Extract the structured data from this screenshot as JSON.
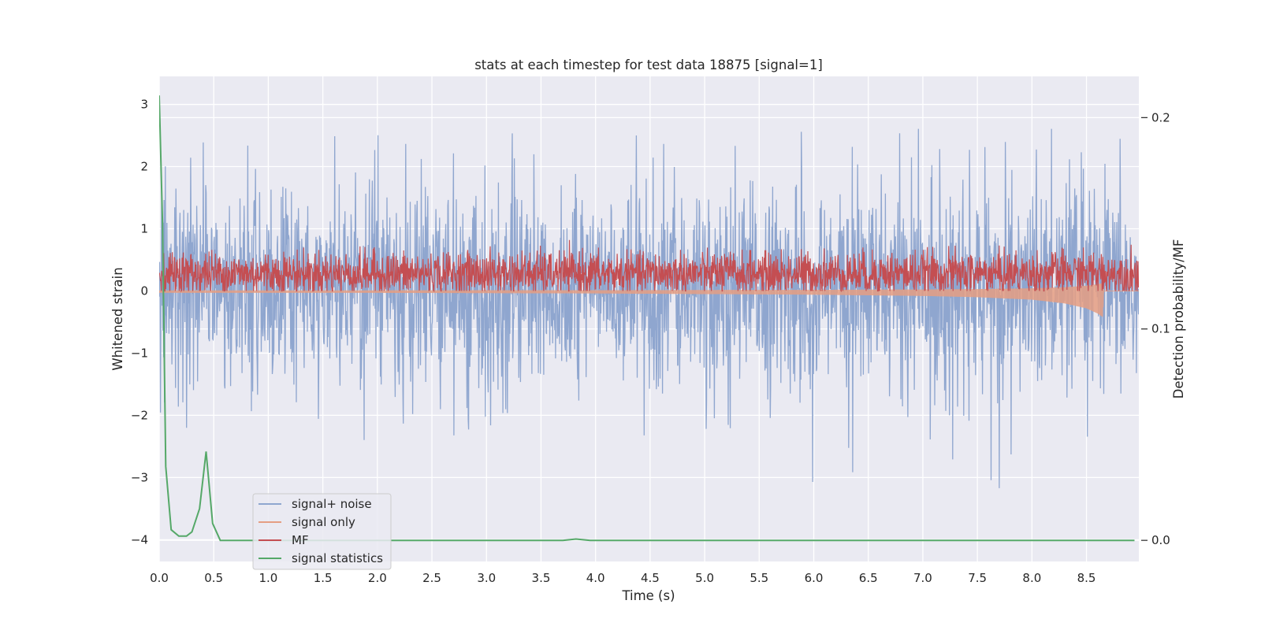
{
  "chart_data": {
    "type": "line",
    "title": "stats at each timestep for test data 18875 [signal=1]",
    "xlabel": "Time (s)",
    "ylabel": "Whitened strain",
    "y2label": "Detection probability/MF",
    "xlim": [
      0.0,
      8.98
    ],
    "ylim": [
      -4.35,
      3.45
    ],
    "y2lim": [
      -0.01,
      0.2195
    ],
    "xticks": [
      "0.0",
      "0.5",
      "1.0",
      "1.5",
      "2.0",
      "2.5",
      "3.0",
      "3.5",
      "4.0",
      "4.5",
      "5.0",
      "5.5",
      "6.0",
      "6.5",
      "7.0",
      "7.5",
      "8.0",
      "8.5"
    ],
    "yticks": [
      "3",
      "2",
      "1",
      "0",
      "−1",
      "−2",
      "−3",
      "−4"
    ],
    "y2ticks": [
      "0.2",
      "0.1",
      "0.0"
    ],
    "grid": true,
    "legend_position": "lower left",
    "legend": [
      "signal+ noise",
      "signal only",
      "MF",
      "signal statistics"
    ],
    "colors": {
      "signal_noise": "#8fa6cf",
      "signal_only": "#e59e83",
      "mf": "#c44e52",
      "statistics": "#55a868",
      "background": "#eaeaf2",
      "grid": "#ffffff"
    },
    "series": [
      {
        "name": "signal+ noise",
        "description_type": "noisy strain, approx. std 0.8, range about -4.0 to 3.1",
        "envelope": {
          "x": [
            0.0,
            0.5,
            1.0,
            1.5,
            2.0,
            2.5,
            3.0,
            3.5,
            4.0,
            4.5,
            5.0,
            5.5,
            6.0,
            6.5,
            7.0,
            7.5,
            8.0,
            8.5,
            8.98
          ],
          "upper": [
            2.5,
            2.4,
            2.3,
            2.5,
            2.6,
            2.5,
            2.9,
            2.6,
            2.7,
            2.6,
            3.1,
            2.6,
            2.6,
            2.7,
            2.6,
            2.6,
            2.6,
            2.8,
            2.8
          ],
          "lower": [
            -2.3,
            -2.1,
            -2.3,
            -2.7,
            -2.3,
            -2.3,
            -2.5,
            -2.9,
            -2.5,
            -2.6,
            -2.4,
            -2.7,
            -3.7,
            -2.6,
            -2.5,
            -4.0,
            -2.5,
            -2.4,
            -2.6
          ]
        }
      },
      {
        "name": "signal only",
        "description_type": "chirp oscillating around zero, amplitude growing near merger",
        "amplitude": {
          "x": [
            0.0,
            2.0,
            4.0,
            6.0,
            7.0,
            7.5,
            8.0,
            8.3,
            8.5,
            8.6,
            8.65,
            8.66
          ],
          "amp": [
            0.03,
            0.03,
            0.04,
            0.06,
            0.08,
            0.1,
            0.14,
            0.2,
            0.28,
            0.36,
            0.42,
            0.0
          ]
        }
      },
      {
        "name": "MF",
        "description_type": "matched filter output, values between about 0 and 1",
        "envelope": {
          "x": [
            0.0,
            0.5,
            1.0,
            1.5,
            2.0,
            2.5,
            3.0,
            3.5,
            4.0,
            4.5,
            5.0,
            5.5,
            6.0,
            6.5,
            7.0,
            7.5,
            8.0,
            8.5,
            8.98
          ],
          "upper": [
            0.6,
            0.7,
            0.6,
            0.75,
            0.7,
            0.6,
            0.7,
            0.95,
            0.7,
            0.65,
            0.7,
            0.65,
            0.7,
            0.7,
            0.7,
            0.75,
            0.7,
            0.7,
            0.75
          ],
          "lower": [
            0.0,
            0.0,
            0.0,
            0.0,
            0.0,
            0.0,
            0.0,
            0.0,
            0.0,
            0.0,
            0.0,
            0.0,
            0.0,
            0.0,
            0.0,
            0.0,
            0.0,
            0.0,
            0.0
          ]
        }
      },
      {
        "name": "signal statistics",
        "axis": "right",
        "x": [
          0.0,
          0.03,
          0.06,
          0.11,
          0.18,
          0.25,
          0.3,
          0.37,
          0.43,
          0.49,
          0.56,
          1.0,
          2.0,
          3.0,
          3.5,
          3.7,
          3.82,
          3.95,
          4.5,
          5.0,
          6.0,
          7.0,
          8.0,
          8.94
        ],
        "values": [
          0.2105,
          0.15,
          0.035,
          0.005,
          0.002,
          0.002,
          0.004,
          0.015,
          0.042,
          0.008,
          0.0,
          0.0,
          0.0,
          0.0,
          0.0,
          0.0,
          0.0006,
          0.0,
          0.0,
          0.0,
          0.0,
          0.0,
          0.0,
          0.0
        ]
      }
    ]
  }
}
